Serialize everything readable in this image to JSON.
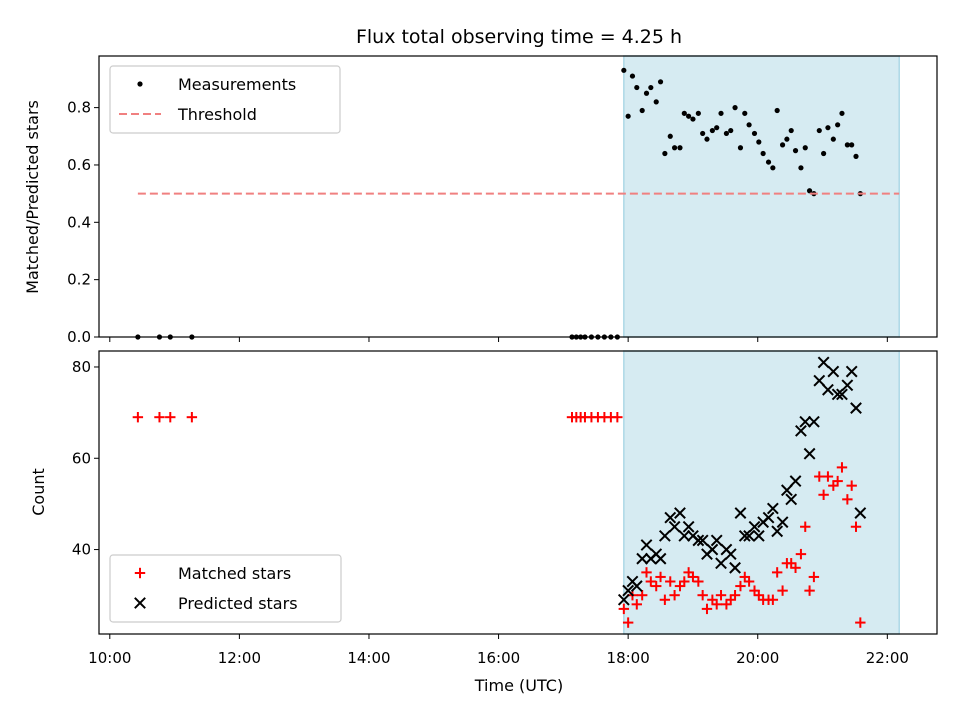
{
  "chart_data": {
    "title": "Flux total observing time = 4.25 h",
    "shaded_interval": [
      "17:56",
      "22:11"
    ],
    "shade_color": "#add8e6",
    "x_axis": {
      "label": "Time (UTC)",
      "range": [
        "09:50",
        "22:46"
      ],
      "ticks": [
        "10:00",
        "12:00",
        "14:00",
        "16:00",
        "18:00",
        "20:00",
        "22:00"
      ]
    },
    "panels": [
      {
        "type": "scatter",
        "ylabel": "Matched/Predicted stars",
        "ylim": [
          0,
          0.98
        ],
        "yticks": [
          "0.0",
          "0.2",
          "0.4",
          "0.6",
          "0.8"
        ],
        "legend_position": "upper-left",
        "series": [
          {
            "name": "Measurements",
            "kind": "scatter",
            "marker": "dot",
            "color": "#000000",
            "points": [
              [
                "10:26",
                0
              ],
              [
                "10:46",
                0
              ],
              [
                "10:56",
                0
              ],
              [
                "11:16",
                0
              ],
              [
                "17:08",
                0
              ],
              [
                "17:12",
                0
              ],
              [
                "17:16",
                0
              ],
              [
                "17:20",
                0
              ],
              [
                "17:26",
                0
              ],
              [
                "17:32",
                0
              ],
              [
                "17:38",
                0
              ],
              [
                "17:44",
                0
              ],
              [
                "17:50",
                0
              ],
              [
                "17:56",
                0.93
              ],
              [
                "18:00",
                0.77
              ],
              [
                "18:04",
                0.91
              ],
              [
                "18:08",
                0.87
              ],
              [
                "18:13",
                0.79
              ],
              [
                "18:17",
                0.85
              ],
              [
                "18:21",
                0.87
              ],
              [
                "18:26",
                0.82
              ],
              [
                "18:30",
                0.89
              ],
              [
                "18:34",
                0.64
              ],
              [
                "18:39",
                0.7
              ],
              [
                "18:43",
                0.66
              ],
              [
                "18:48",
                0.66
              ],
              [
                "18:52",
                0.78
              ],
              [
                "18:56",
                0.77
              ],
              [
                "19:00",
                0.76
              ],
              [
                "19:05",
                0.78
              ],
              [
                "19:09",
                0.71
              ],
              [
                "19:13",
                0.69
              ],
              [
                "19:18",
                0.72
              ],
              [
                "19:22",
                0.73
              ],
              [
                "19:26",
                0.78
              ],
              [
                "19:31",
                0.71
              ],
              [
                "19:35",
                0.72
              ],
              [
                "19:39",
                0.8
              ],
              [
                "19:44",
                0.66
              ],
              [
                "19:48",
                0.78
              ],
              [
                "19:52",
                0.74
              ],
              [
                "19:57",
                0.71
              ],
              [
                "20:01",
                0.68
              ],
              [
                "20:05",
                0.64
              ],
              [
                "20:10",
                0.61
              ],
              [
                "20:14",
                0.59
              ],
              [
                "20:18",
                0.79
              ],
              [
                "20:23",
                0.67
              ],
              [
                "20:27",
                0.69
              ],
              [
                "20:31",
                0.72
              ],
              [
                "20:35",
                0.65
              ],
              [
                "20:40",
                0.59
              ],
              [
                "20:44",
                0.66
              ],
              [
                "20:48",
                0.51
              ],
              [
                "20:52",
                0.5
              ],
              [
                "20:57",
                0.72
              ],
              [
                "21:01",
                0.64
              ],
              [
                "21:05",
                0.73
              ],
              [
                "21:10",
                0.69
              ],
              [
                "21:14",
                0.74
              ],
              [
                "21:18",
                0.78
              ],
              [
                "21:23",
                0.67
              ],
              [
                "21:27",
                0.67
              ],
              [
                "21:31",
                0.63
              ],
              [
                "21:35",
                0.5
              ]
            ]
          },
          {
            "name": "Threshold",
            "kind": "line",
            "dash": "dashed",
            "color": "#f08080",
            "points": [
              [
                "10:26",
                0.5
              ],
              [
                "22:11",
                0.5
              ]
            ]
          }
        ]
      },
      {
        "type": "scatter",
        "ylabel": "Count",
        "ylim": [
          21.5,
          83.5
        ],
        "yticks": [
          "40",
          "60",
          "80"
        ],
        "legend_position": "lower-left",
        "series": [
          {
            "name": "Matched stars",
            "kind": "scatter",
            "marker": "plus",
            "color": "#ff0000",
            "points": [
              [
                "10:26",
                69
              ],
              [
                "10:46",
                69
              ],
              [
                "10:56",
                69
              ],
              [
                "11:16",
                69
              ],
              [
                "17:08",
                69
              ],
              [
                "17:12",
                69
              ],
              [
                "17:16",
                69
              ],
              [
                "17:20",
                69
              ],
              [
                "17:26",
                69
              ],
              [
                "17:32",
                69
              ],
              [
                "17:38",
                69
              ],
              [
                "17:44",
                69
              ],
              [
                "17:50",
                69
              ],
              [
                "17:56",
                27
              ],
              [
                "18:00",
                24
              ],
              [
                "18:04",
                30
              ],
              [
                "18:08",
                28
              ],
              [
                "18:13",
                30
              ],
              [
                "18:17",
                35
              ],
              [
                "18:21",
                33
              ],
              [
                "18:26",
                32
              ],
              [
                "18:30",
                34
              ],
              [
                "18:34",
                29
              ],
              [
                "18:39",
                33
              ],
              [
                "18:43",
                30
              ],
              [
                "18:48",
                32
              ],
              [
                "18:52",
                33
              ],
              [
                "18:56",
                35
              ],
              [
                "19:00",
                34
              ],
              [
                "19:05",
                33
              ],
              [
                "19:09",
                30
              ],
              [
                "19:13",
                27
              ],
              [
                "19:18",
                29
              ],
              [
                "19:22",
                28
              ],
              [
                "19:26",
                30
              ],
              [
                "19:31",
                28
              ],
              [
                "19:35",
                29
              ],
              [
                "19:39",
                30
              ],
              [
                "19:44",
                32
              ],
              [
                "19:48",
                34
              ],
              [
                "19:52",
                33
              ],
              [
                "19:57",
                31
              ],
              [
                "20:01",
                30
              ],
              [
                "20:05",
                29
              ],
              [
                "20:10",
                29
              ],
              [
                "20:14",
                29
              ],
              [
                "20:18",
                35
              ],
              [
                "20:23",
                31
              ],
              [
                "20:27",
                37
              ],
              [
                "20:31",
                37
              ],
              [
                "20:35",
                36
              ],
              [
                "20:40",
                39
              ],
              [
                "20:44",
                45
              ],
              [
                "20:48",
                31
              ],
              [
                "20:52",
                34
              ],
              [
                "20:57",
                56
              ],
              [
                "21:01",
                52
              ],
              [
                "21:05",
                56
              ],
              [
                "21:10",
                54
              ],
              [
                "21:14",
                55
              ],
              [
                "21:18",
                58
              ],
              [
                "21:23",
                51
              ],
              [
                "21:27",
                54
              ],
              [
                "21:31",
                45
              ],
              [
                "21:35",
                24
              ]
            ]
          },
          {
            "name": "Predicted stars",
            "kind": "scatter",
            "marker": "x",
            "color": "#000000",
            "points": [
              [
                "17:56",
                29
              ],
              [
                "18:00",
                31
              ],
              [
                "18:04",
                33
              ],
              [
                "18:08",
                32
              ],
              [
                "18:13",
                38
              ],
              [
                "18:17",
                41
              ],
              [
                "18:21",
                38
              ],
              [
                "18:26",
                39
              ],
              [
                "18:30",
                38
              ],
              [
                "18:34",
                43
              ],
              [
                "18:39",
                47
              ],
              [
                "18:43",
                45
              ],
              [
                "18:48",
                48
              ],
              [
                "18:52",
                43
              ],
              [
                "18:56",
                45
              ],
              [
                "19:00",
                43
              ],
              [
                "19:05",
                42
              ],
              [
                "19:09",
                42
              ],
              [
                "19:13",
                39
              ],
              [
                "19:18",
                40
              ],
              [
                "19:22",
                42
              ],
              [
                "19:26",
                37
              ],
              [
                "19:31",
                40
              ],
              [
                "19:35",
                39
              ],
              [
                "19:39",
                36
              ],
              [
                "19:44",
                48
              ],
              [
                "19:48",
                43
              ],
              [
                "19:52",
                43
              ],
              [
                "19:57",
                45
              ],
              [
                "20:01",
                43
              ],
              [
                "20:05",
                46
              ],
              [
                "20:10",
                47
              ],
              [
                "20:14",
                49
              ],
              [
                "20:18",
                44
              ],
              [
                "20:23",
                46
              ],
              [
                "20:27",
                53
              ],
              [
                "20:31",
                51
              ],
              [
                "20:35",
                55
              ],
              [
                "20:40",
                66
              ],
              [
                "20:44",
                68
              ],
              [
                "20:48",
                61
              ],
              [
                "20:52",
                68
              ],
              [
                "20:57",
                77
              ],
              [
                "21:01",
                81
              ],
              [
                "21:05",
                75
              ],
              [
                "21:10",
                79
              ],
              [
                "21:14",
                74
              ],
              [
                "21:18",
                74
              ],
              [
                "21:23",
                76
              ],
              [
                "21:27",
                79
              ],
              [
                "21:31",
                71
              ],
              [
                "21:35",
                48
              ]
            ]
          }
        ]
      }
    ]
  }
}
